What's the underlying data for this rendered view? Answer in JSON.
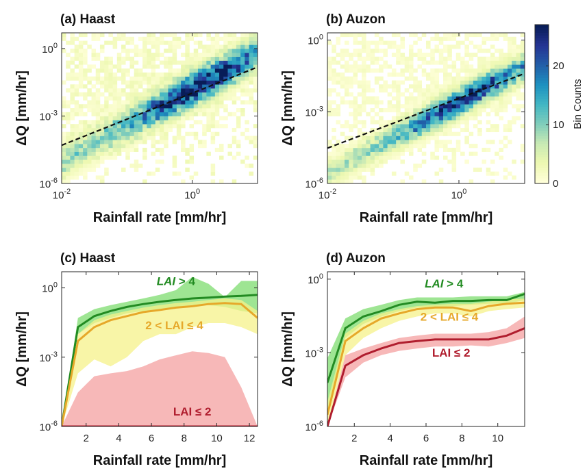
{
  "colorbar": {
    "label": "Bin Counts",
    "ticks": [
      0,
      10,
      20
    ],
    "range": [
      0,
      27
    ],
    "colors": [
      "#ffffd9",
      "#edf8b1",
      "#c7e9b4",
      "#7fcdbb",
      "#41b6c4",
      "#1d91c0",
      "#225ea8",
      "#253494",
      "#081d58"
    ]
  },
  "chart_data": [
    {
      "type": "heatmap",
      "title": "(a) Haast",
      "xlabel": "Rainfall rate [mm/hr]",
      "ylabel": "ΔQ [mm/hr]",
      "xscale": "log",
      "yscale": "log",
      "xlim": [
        0.01,
        10
      ],
      "ylim": [
        1e-06,
        5
      ],
      "xticks": [
        {
          "v": 0.01,
          "b": "10",
          "e": "-2"
        },
        {
          "v": 1,
          "b": "10",
          "e": "0"
        }
      ],
      "yticks": [
        {
          "v": 1e-06,
          "b": "10",
          "e": "-6"
        },
        {
          "v": 0.001,
          "b": "10",
          "e": "-3"
        },
        {
          "v": 1,
          "b": "10",
          "e": "0"
        }
      ],
      "fit_line": {
        "style": "dashed",
        "color": "#111111",
        "points": [
          [
            0.01,
            5e-05
          ],
          [
            10,
            0.15
          ]
        ]
      },
      "density": {
        "ridge_slope": 1.6,
        "ridge_log10x": 0,
        "ridge_log10y": -1.8,
        "spread": 0.65,
        "peak": 27,
        "background": 3
      }
    },
    {
      "type": "heatmap",
      "title": "(b) Auzon",
      "xlabel": "Rainfall rate [mm/hr]",
      "ylabel": "ΔQ [mm/hr]",
      "xscale": "log",
      "yscale": "log",
      "xlim": [
        0.01,
        10
      ],
      "ylim": [
        1e-06,
        2
      ],
      "xticks": [
        {
          "v": 0.01,
          "b": "10",
          "e": "-2"
        },
        {
          "v": 1,
          "b": "10",
          "e": "0"
        }
      ],
      "yticks": [
        {
          "v": 1e-06,
          "b": "10",
          "e": "-6"
        },
        {
          "v": 0.001,
          "b": "10",
          "e": "-3"
        },
        {
          "v": 1,
          "b": "10",
          "e": "0"
        }
      ],
      "fit_line": {
        "style": "dashed",
        "color": "#111111",
        "points": [
          [
            0.01,
            3e-05
          ],
          [
            10,
            0.04
          ]
        ]
      },
      "density": {
        "ridge_slope": 1.5,
        "ridge_log10x": 0,
        "ridge_log10y": -2.6,
        "spread": 0.5,
        "peak": 24,
        "background": 2
      }
    },
    {
      "type": "line",
      "title": "(c) Haast",
      "xlabel": "Rainfall rate [mm/hr]",
      "ylabel": "ΔQ [mm/hr]",
      "yscale": "log",
      "xlim": [
        0.5,
        12.5
      ],
      "ylim": [
        1e-06,
        5
      ],
      "xticks": [
        2,
        4,
        6,
        8,
        10,
        12
      ],
      "yticks": [
        {
          "v": 1e-06,
          "b": "10",
          "e": "-6"
        },
        {
          "v": 0.001,
          "b": "10",
          "e": "-3"
        },
        {
          "v": 1,
          "b": "10",
          "e": "0"
        }
      ],
      "x": [
        0.5,
        1.5,
        2.5,
        3.5,
        4.5,
        5.5,
        6.5,
        7.5,
        8.5,
        9.5,
        10.5,
        11.5,
        12.5
      ],
      "series": [
        {
          "name": "LAI > 4",
          "color": "#228b22",
          "band_color": "#7ddc6f",
          "values": [
            1e-06,
            0.02,
            0.06,
            0.1,
            0.15,
            0.2,
            0.25,
            0.3,
            0.35,
            0.38,
            0.42,
            0.45,
            0.5
          ],
          "lower": [
            1e-06,
            0.01,
            0.03,
            0.05,
            0.08,
            0.1,
            0.12,
            0.15,
            0.18,
            0.18,
            0.15,
            0.1,
            0.08
          ],
          "upper": [
            1e-06,
            0.05,
            0.12,
            0.18,
            0.25,
            0.35,
            0.5,
            0.8,
            3,
            1.5,
            0.4,
            2,
            2
          ]
        },
        {
          "name": "2 < LAI ≤ 4",
          "color": "#e6a82a",
          "band_color": "#f5f28a",
          "values": [
            1e-06,
            0.005,
            0.02,
            0.04,
            0.06,
            0.09,
            0.11,
            0.14,
            0.16,
            0.2,
            0.22,
            0.2,
            0.05
          ],
          "lower": [
            1e-06,
            0.0002,
            0.0008,
            0.0004,
            0.001,
            0.005,
            0.01,
            0.01,
            0.02,
            0.03,
            0.03,
            0.02,
            0.01
          ],
          "upper": [
            1e-06,
            0.01,
            0.04,
            0.07,
            0.1,
            0.14,
            0.18,
            0.22,
            0.25,
            0.3,
            0.35,
            0.3,
            0.1
          ]
        },
        {
          "name": "LAI ≤ 2",
          "color": "#b01d2e",
          "band_color": "#f4a0a0",
          "values": [
            1e-06,
            1e-06,
            1e-06,
            1e-06,
            1e-06,
            1e-06,
            1e-06,
            1e-06,
            1e-06,
            1e-06,
            1e-06,
            1e-06,
            1e-06
          ],
          "lower": [
            1e-06,
            1e-06,
            1e-06,
            1e-06,
            1e-06,
            1e-06,
            1e-06,
            1e-06,
            1e-06,
            1e-06,
            1e-06,
            1e-06,
            1e-06
          ],
          "upper": [
            1e-06,
            3e-05,
            0.00015,
            0.0002,
            0.00025,
            0.0004,
            0.0008,
            0.0012,
            0.0018,
            0.0015,
            0.001,
            5e-05,
            1e-06
          ]
        }
      ],
      "labels": [
        {
          "text": "LAI > 4",
          "x": 7.5,
          "y": 1.3,
          "series": 0,
          "italic": "LAI"
        },
        {
          "text": "2 < LAI ≤ 4",
          "x": 7.4,
          "y": 0.016,
          "series": 1
        },
        {
          "text": "LAI ≤ 2",
          "x": 8.5,
          "y": 3e-06,
          "series": 2
        }
      ]
    },
    {
      "type": "line",
      "title": "(d) Auzon",
      "xlabel": "Rainfall rate [mm/hr]",
      "ylabel": "ΔQ [mm/hr]",
      "yscale": "log",
      "xlim": [
        0.5,
        11.5
      ],
      "ylim": [
        1e-06,
        2
      ],
      "xticks": [
        2,
        4,
        6,
        8,
        10
      ],
      "yticks": [
        {
          "v": 1e-06,
          "b": "10",
          "e": "-6"
        },
        {
          "v": 0.001,
          "b": "10",
          "e": "-3"
        },
        {
          "v": 1,
          "b": "10",
          "e": "0"
        }
      ],
      "x": [
        0.5,
        1.5,
        2.5,
        3.5,
        4.5,
        5.5,
        6.5,
        7.5,
        8.5,
        9.5,
        10.5,
        11.5
      ],
      "series": [
        {
          "name": "LAI > 4",
          "color": "#228b22",
          "band_color": "#7ddc6f",
          "values": [
            6e-05,
            0.01,
            0.03,
            0.05,
            0.09,
            0.12,
            0.11,
            0.13,
            0.13,
            0.14,
            0.14,
            0.25
          ],
          "lower": [
            3e-06,
            0.004,
            0.015,
            0.03,
            0.05,
            0.07,
            0.07,
            0.08,
            0.09,
            0.1,
            0.1,
            0.14
          ],
          "upper": [
            0.0006,
            0.025,
            0.06,
            0.09,
            0.14,
            0.18,
            0.18,
            0.18,
            0.2,
            0.2,
            0.2,
            0.3
          ]
        },
        {
          "name": "2 < LAI ≤ 4",
          "color": "#e6a82a",
          "band_color": "#f5f28a",
          "values": [
            3e-06,
            0.003,
            0.01,
            0.025,
            0.04,
            0.06,
            0.07,
            0.07,
            0.05,
            0.08,
            0.1,
            0.11
          ],
          "lower": [
            1e-06,
            0.0008,
            0.004,
            0.01,
            0.02,
            0.03,
            0.04,
            0.04,
            0.03,
            0.05,
            0.06,
            0.07
          ],
          "upper": [
            1e-05,
            0.006,
            0.02,
            0.04,
            0.06,
            0.08,
            0.09,
            0.1,
            0.1,
            0.12,
            0.15,
            0.16
          ]
        },
        {
          "name": "LAI ≤ 2",
          "color": "#b01d2e",
          "band_color": "#f4a0a0",
          "values": [
            1e-06,
            0.0003,
            0.0008,
            0.0015,
            0.0025,
            0.003,
            0.0035,
            0.0035,
            0.0035,
            0.0035,
            0.005,
            0.01
          ],
          "lower": [
            1e-06,
            0.0001,
            0.0004,
            0.0008,
            0.0012,
            0.0015,
            0.0018,
            0.0018,
            0.002,
            0.0018,
            0.0025,
            0.004
          ],
          "upper": [
            1e-06,
            0.0008,
            0.0015,
            0.0025,
            0.004,
            0.005,
            0.006,
            0.006,
            0.006,
            0.007,
            0.01,
            0.03
          ]
        }
      ],
      "labels": [
        {
          "text": "LAI > 4",
          "x": 7,
          "y": 0.45,
          "series": 0,
          "italic": "LAI"
        },
        {
          "text": "2 < LAI ≤ 4",
          "x": 7.3,
          "y": 0.02,
          "series": 1
        },
        {
          "text": "LAI ≤ 2",
          "x": 7.4,
          "y": 0.0007,
          "series": 2
        }
      ]
    }
  ]
}
